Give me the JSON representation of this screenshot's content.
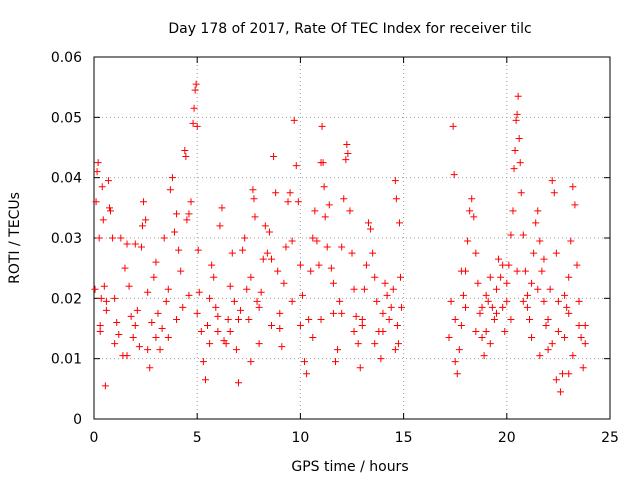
{
  "chart_data": {
    "type": "scatter",
    "title": "Day 178 of 2017, Rate Of TEC Index for receiver tilc",
    "xlabel": "GPS time / hours",
    "ylabel": "ROTI / TECUs",
    "xlim": [
      0,
      25
    ],
    "ylim": [
      0,
      0.06
    ],
    "xticks": [
      0,
      5,
      10,
      15,
      20,
      25
    ],
    "xtick_labels": [
      "0",
      "5",
      "10",
      "15",
      "20",
      "25"
    ],
    "yticks": [
      0,
      0.01,
      0.02,
      0.03,
      0.04,
      0.05,
      0.06
    ],
    "ytick_labels": [
      "0",
      "0.01",
      "0.02",
      "0.03",
      "0.04",
      "0.05",
      "0.06"
    ],
    "grid": true,
    "marker": "plus",
    "marker_color": "#ff0000",
    "series": [
      {
        "name": "ROTI",
        "points": [
          [
            0.05,
            0.0215
          ],
          [
            0.1,
            0.036
          ],
          [
            0.15,
            0.041
          ],
          [
            0.2,
            0.0425
          ],
          [
            0.25,
            0.03
          ],
          [
            0.3,
            0.0155
          ],
          [
            0.35,
            0.02
          ],
          [
            0.4,
            0.0385
          ],
          [
            0.45,
            0.033
          ],
          [
            0.5,
            0.022
          ],
          [
            0.55,
            0.0055
          ],
          [
            0.6,
            0.018
          ],
          [
            0.7,
            0.0395
          ],
          [
            0.75,
            0.035
          ],
          [
            0.8,
            0.0345
          ],
          [
            0.9,
            0.03
          ],
          [
            1.0,
            0.02
          ],
          [
            1.1,
            0.016
          ],
          [
            1.2,
            0.014
          ],
          [
            1.3,
            0.03
          ],
          [
            1.4,
            0.0105
          ],
          [
            1.5,
            0.025
          ],
          [
            1.6,
            0.029
          ],
          [
            1.7,
            0.022
          ],
          [
            1.8,
            0.017
          ],
          [
            1.9,
            0.0135
          ],
          [
            2.0,
            0.029
          ],
          [
            2.1,
            0.018
          ],
          [
            2.2,
            0.012
          ],
          [
            2.3,
            0.0285
          ],
          [
            2.35,
            0.032
          ],
          [
            2.4,
            0.036
          ],
          [
            2.5,
            0.033
          ],
          [
            2.6,
            0.021
          ],
          [
            2.7,
            0.0085
          ],
          [
            2.8,
            0.016
          ],
          [
            2.9,
            0.0235
          ],
          [
            3.0,
            0.026
          ],
          [
            3.1,
            0.0175
          ],
          [
            3.2,
            0.0115
          ],
          [
            3.3,
            0.015
          ],
          [
            3.4,
            0.03
          ],
          [
            3.5,
            0.0195
          ],
          [
            3.6,
            0.0135
          ],
          [
            3.7,
            0.038
          ],
          [
            3.8,
            0.04
          ],
          [
            3.9,
            0.031
          ],
          [
            4.0,
            0.034
          ],
          [
            4.1,
            0.028
          ],
          [
            4.2,
            0.0245
          ],
          [
            4.3,
            0.0185
          ],
          [
            4.4,
            0.0445
          ],
          [
            4.45,
            0.0435
          ],
          [
            4.5,
            0.033
          ],
          [
            4.6,
            0.034
          ],
          [
            4.7,
            0.036
          ],
          [
            4.8,
            0.049
          ],
          [
            4.85,
            0.0515
          ],
          [
            4.9,
            0.0545
          ],
          [
            4.95,
            0.0555
          ],
          [
            5.0,
            0.0485
          ],
          [
            5.05,
            0.028
          ],
          [
            5.1,
            0.021
          ],
          [
            5.2,
            0.0145
          ],
          [
            5.3,
            0.0095
          ],
          [
            5.4,
            0.0065
          ],
          [
            5.5,
            0.0155
          ],
          [
            5.6,
            0.02
          ],
          [
            5.7,
            0.0255
          ],
          [
            5.8,
            0.0235
          ],
          [
            5.9,
            0.0185
          ],
          [
            6.0,
            0.017
          ],
          [
            6.1,
            0.032
          ],
          [
            6.2,
            0.035
          ],
          [
            6.3,
            0.013
          ],
          [
            6.4,
            0.0125
          ],
          [
            6.5,
            0.0165
          ],
          [
            6.6,
            0.022
          ],
          [
            6.7,
            0.0275
          ],
          [
            6.8,
            0.0195
          ],
          [
            6.9,
            0.0115
          ],
          [
            7.0,
            0.006
          ],
          [
            7.1,
            0.018
          ],
          [
            7.2,
            0.028
          ],
          [
            7.3,
            0.03
          ],
          [
            7.4,
            0.0215
          ],
          [
            7.5,
            0.0165
          ],
          [
            7.6,
            0.0235
          ],
          [
            7.7,
            0.038
          ],
          [
            7.75,
            0.0365
          ],
          [
            7.8,
            0.0335
          ],
          [
            7.9,
            0.0195
          ],
          [
            8.0,
            0.0125
          ],
          [
            8.1,
            0.021
          ],
          [
            8.2,
            0.0265
          ],
          [
            8.3,
            0.032
          ],
          [
            8.4,
            0.0275
          ],
          [
            8.5,
            0.031
          ],
          [
            8.6,
            0.0265
          ],
          [
            8.7,
            0.0435
          ],
          [
            8.8,
            0.0375
          ],
          [
            8.9,
            0.0245
          ],
          [
            9.0,
            0.015
          ],
          [
            9.1,
            0.012
          ],
          [
            9.2,
            0.0225
          ],
          [
            9.3,
            0.0285
          ],
          [
            9.4,
            0.036
          ],
          [
            9.5,
            0.0375
          ],
          [
            9.6,
            0.0295
          ],
          [
            9.7,
            0.0495
          ],
          [
            9.8,
            0.042
          ],
          [
            9.9,
            0.036
          ],
          [
            10.0,
            0.0255
          ],
          [
            10.1,
            0.0205
          ],
          [
            10.2,
            0.0095
          ],
          [
            10.3,
            0.0075
          ],
          [
            10.4,
            0.0165
          ],
          [
            10.5,
            0.0245
          ],
          [
            10.6,
            0.03
          ],
          [
            10.7,
            0.0345
          ],
          [
            10.8,
            0.0295
          ],
          [
            10.9,
            0.0255
          ],
          [
            11.0,
            0.0425
          ],
          [
            11.05,
            0.0485
          ],
          [
            11.1,
            0.0425
          ],
          [
            11.15,
            0.0385
          ],
          [
            11.2,
            0.0335
          ],
          [
            11.3,
            0.0285
          ],
          [
            11.4,
            0.0355
          ],
          [
            11.5,
            0.025
          ],
          [
            11.6,
            0.0175
          ],
          [
            11.7,
            0.0095
          ],
          [
            11.8,
            0.0115
          ],
          [
            11.9,
            0.0195
          ],
          [
            12.0,
            0.0285
          ],
          [
            12.1,
            0.0365
          ],
          [
            12.2,
            0.043
          ],
          [
            12.25,
            0.0455
          ],
          [
            12.3,
            0.044
          ],
          [
            12.4,
            0.0345
          ],
          [
            12.5,
            0.0275
          ],
          [
            12.6,
            0.0215
          ],
          [
            12.7,
            0.017
          ],
          [
            12.8,
            0.0125
          ],
          [
            12.9,
            0.0085
          ],
          [
            13.0,
            0.0155
          ],
          [
            13.1,
            0.0215
          ],
          [
            13.2,
            0.0255
          ],
          [
            13.3,
            0.0325
          ],
          [
            13.4,
            0.0315
          ],
          [
            13.5,
            0.0275
          ],
          [
            13.6,
            0.0235
          ],
          [
            13.7,
            0.0195
          ],
          [
            13.8,
            0.0145
          ],
          [
            13.9,
            0.01
          ],
          [
            14.0,
            0.0175
          ],
          [
            14.1,
            0.0225
          ],
          [
            14.2,
            0.0205
          ],
          [
            14.3,
            0.0165
          ],
          [
            14.4,
            0.0185
          ],
          [
            14.5,
            0.0215
          ],
          [
            14.6,
            0.0395
          ],
          [
            14.65,
            0.0365
          ],
          [
            14.7,
            0.0155
          ],
          [
            14.75,
            0.0125
          ],
          [
            14.8,
            0.0325
          ],
          [
            14.85,
            0.0235
          ],
          [
            14.9,
            0.0185
          ],
          [
            0.3,
            0.0145
          ],
          [
            1.0,
            0.0125
          ],
          [
            2.0,
            0.0155
          ],
          [
            3.0,
            0.0135
          ],
          [
            4.0,
            0.0165
          ],
          [
            5.0,
            0.0175
          ],
          [
            6.0,
            0.0145
          ],
          [
            7.0,
            0.0165
          ],
          [
            8.0,
            0.0185
          ],
          [
            9.0,
            0.0175
          ],
          [
            10.0,
            0.0155
          ],
          [
            11.0,
            0.0165
          ],
          [
            12.0,
            0.0175
          ],
          [
            13.0,
            0.0165
          ],
          [
            14.0,
            0.0145
          ],
          [
            0.6,
            0.0195
          ],
          [
            1.6,
            0.0105
          ],
          [
            2.6,
            0.0115
          ],
          [
            3.6,
            0.0215
          ],
          [
            4.6,
            0.0205
          ],
          [
            5.6,
            0.0125
          ],
          [
            6.6,
            0.0145
          ],
          [
            7.6,
            0.0095
          ],
          [
            8.6,
            0.0155
          ],
          [
            9.6,
            0.0195
          ],
          [
            10.6,
            0.0135
          ],
          [
            11.6,
            0.0225
          ],
          [
            12.6,
            0.0145
          ],
          [
            13.6,
            0.0125
          ],
          [
            14.6,
            0.0115
          ],
          [
            17.2,
            0.0135
          ],
          [
            17.3,
            0.0195
          ],
          [
            17.4,
            0.0485
          ],
          [
            17.45,
            0.0405
          ],
          [
            17.5,
            0.0095
          ],
          [
            17.6,
            0.0075
          ],
          [
            17.7,
            0.0115
          ],
          [
            17.8,
            0.0155
          ],
          [
            17.9,
            0.0205
          ],
          [
            18.0,
            0.0245
          ],
          [
            18.1,
            0.0295
          ],
          [
            18.2,
            0.0345
          ],
          [
            18.3,
            0.0365
          ],
          [
            18.4,
            0.0335
          ],
          [
            18.5,
            0.0275
          ],
          [
            18.6,
            0.0225
          ],
          [
            18.7,
            0.0175
          ],
          [
            18.8,
            0.0135
          ],
          [
            18.9,
            0.0105
          ],
          [
            19.0,
            0.0145
          ],
          [
            19.1,
            0.0195
          ],
          [
            19.2,
            0.0235
          ],
          [
            19.3,
            0.0185
          ],
          [
            19.4,
            0.0165
          ],
          [
            19.5,
            0.0215
          ],
          [
            19.6,
            0.0265
          ],
          [
            19.7,
            0.0235
          ],
          [
            19.8,
            0.0185
          ],
          [
            19.9,
            0.0145
          ],
          [
            20.0,
            0.0195
          ],
          [
            20.1,
            0.0255
          ],
          [
            20.2,
            0.0305
          ],
          [
            20.3,
            0.0345
          ],
          [
            20.35,
            0.0415
          ],
          [
            20.4,
            0.0445
          ],
          [
            20.45,
            0.0495
          ],
          [
            20.5,
            0.0505
          ],
          [
            20.55,
            0.0535
          ],
          [
            20.6,
            0.0465
          ],
          [
            20.65,
            0.0425
          ],
          [
            20.7,
            0.0375
          ],
          [
            20.8,
            0.0305
          ],
          [
            20.9,
            0.0245
          ],
          [
            21.0,
            0.0205
          ],
          [
            21.1,
            0.0165
          ],
          [
            21.2,
            0.0225
          ],
          [
            21.3,
            0.0275
          ],
          [
            21.4,
            0.0325
          ],
          [
            21.5,
            0.0345
          ],
          [
            21.6,
            0.0295
          ],
          [
            21.7,
            0.0245
          ],
          [
            21.8,
            0.0195
          ],
          [
            21.9,
            0.0155
          ],
          [
            22.0,
            0.0115
          ],
          [
            22.1,
            0.0215
          ],
          [
            22.2,
            0.0395
          ],
          [
            22.3,
            0.0375
          ],
          [
            22.4,
            0.0275
          ],
          [
            22.5,
            0.0195
          ],
          [
            22.6,
            0.0045
          ],
          [
            22.7,
            0.0075
          ],
          [
            22.8,
            0.0135
          ],
          [
            22.9,
            0.0185
          ],
          [
            23.0,
            0.0235
          ],
          [
            23.1,
            0.0295
          ],
          [
            23.2,
            0.0385
          ],
          [
            23.3,
            0.0355
          ],
          [
            23.4,
            0.0255
          ],
          [
            23.5,
            0.0195
          ],
          [
            23.6,
            0.0135
          ],
          [
            23.7,
            0.0085
          ],
          [
            23.8,
            0.0155
          ],
          [
            17.5,
            0.0165
          ],
          [
            18.0,
            0.0185
          ],
          [
            18.5,
            0.0145
          ],
          [
            19.0,
            0.0205
          ],
          [
            19.5,
            0.0175
          ],
          [
            20.0,
            0.0225
          ],
          [
            20.5,
            0.0245
          ],
          [
            21.0,
            0.0185
          ],
          [
            21.5,
            0.0215
          ],
          [
            22.0,
            0.0165
          ],
          [
            22.5,
            0.0145
          ],
          [
            23.0,
            0.0175
          ],
          [
            23.5,
            0.0155
          ],
          [
            17.8,
            0.0245
          ],
          [
            18.8,
            0.0185
          ],
          [
            19.8,
            0.0255
          ],
          [
            20.8,
            0.0195
          ],
          [
            21.8,
            0.0265
          ],
          [
            22.8,
            0.0205
          ],
          [
            23.8,
            0.0125
          ],
          [
            19.2,
            0.0125
          ],
          [
            20.2,
            0.0165
          ],
          [
            21.2,
            0.0135
          ],
          [
            22.2,
            0.0125
          ],
          [
            23.2,
            0.0105
          ],
          [
            22.4,
            0.0065
          ],
          [
            23.0,
            0.0075
          ],
          [
            21.6,
            0.0105
          ]
        ]
      }
    ]
  }
}
